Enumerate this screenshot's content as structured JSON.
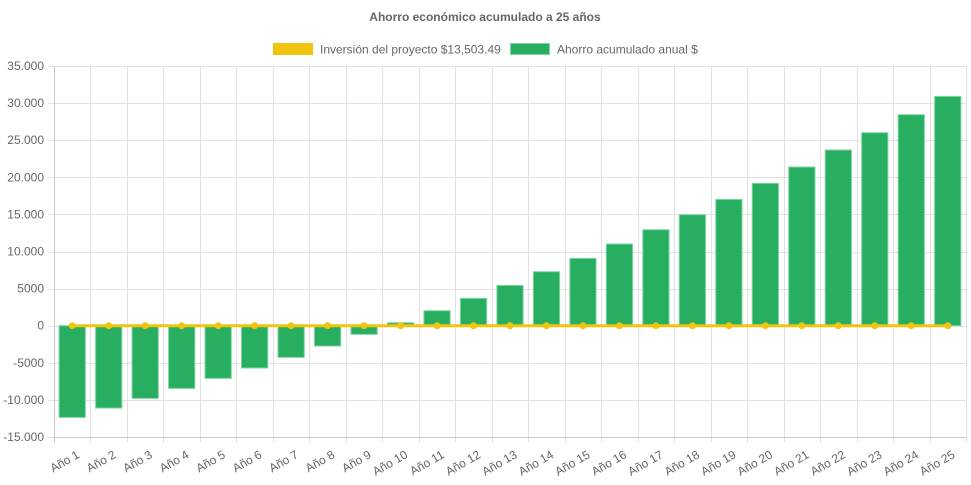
{
  "chart_data": {
    "type": "bar",
    "title": "Ahorro económico acumulado a 25 años",
    "xlabel": "",
    "ylabel": "",
    "ylim": [
      -15000,
      35000
    ],
    "yticks": [
      35000,
      30000,
      25000,
      20000,
      15000,
      10000,
      5000,
      0,
      -5000,
      -10000,
      -15000
    ],
    "ytick_labels": [
      "35.000",
      "30.000",
      "25.000",
      "20.000",
      "15.000",
      "10.000",
      "5000",
      "0",
      "-5000",
      "-10.000",
      "-15.000"
    ],
    "grid": true,
    "legend_position": "top-center",
    "categories": [
      "Año 1",
      "Año 2",
      "Año 3",
      "Año 4",
      "Año 5",
      "Año 6",
      "Año 7",
      "Año 8",
      "Año 9",
      "Año 10",
      "Año 11",
      "Año 12",
      "Año 13",
      "Año 14",
      "Año 15",
      "Año 16",
      "Año 17",
      "Año 18",
      "Año 19",
      "Año 20",
      "Año 21",
      "Año 22",
      "Año 23",
      "Año 24",
      "Año 25"
    ],
    "series": [
      {
        "name": "Inversión del proyecto $13,503.49",
        "type": "line",
        "color": "#f1c40f",
        "values": [
          0,
          0,
          0,
          0,
          0,
          0,
          0,
          0,
          0,
          0,
          0,
          0,
          0,
          0,
          0,
          0,
          0,
          0,
          0,
          0,
          0,
          0,
          0,
          0,
          0
        ]
      },
      {
        "name": "Ahorro acumulado anual $",
        "type": "bar",
        "color": "#27ae60",
        "values": [
          -12360,
          -11100,
          -9800,
          -8450,
          -7100,
          -5700,
          -4270,
          -2740,
          -1170,
          400,
          2020,
          3680,
          5430,
          7280,
          9070,
          11010,
          12940,
          14960,
          17020,
          19180,
          21390,
          23680,
          26010,
          28440,
          30900
        ]
      }
    ]
  }
}
